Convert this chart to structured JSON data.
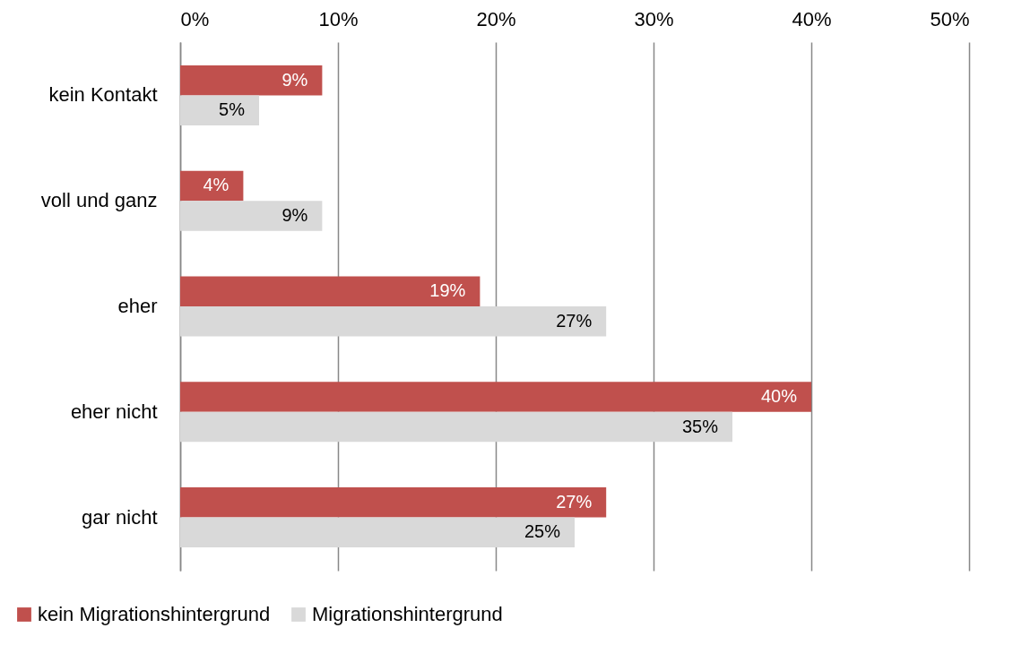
{
  "chart_data": {
    "type": "bar",
    "orientation": "horizontal",
    "categories": [
      "kein Kontakt",
      "voll und ganz",
      "eher",
      "eher nicht",
      "gar nicht"
    ],
    "series": [
      {
        "name": "kein Migrationshintergrund",
        "color": "#c0504d",
        "values": [
          9,
          4,
          19,
          40,
          27
        ],
        "value_labels": [
          "9%",
          "4%",
          "19%",
          "40%",
          "27%"
        ]
      },
      {
        "name": "Migrationshintergrund",
        "color": "#d9d9d9",
        "values": [
          5,
          9,
          27,
          35,
          25
        ],
        "value_labels": [
          "5%",
          "9%",
          "27%",
          "35%",
          "25%"
        ]
      }
    ],
    "xlim": [
      0,
      50
    ],
    "xticks": [
      {
        "value": 0,
        "label": "0%"
      },
      {
        "value": 10,
        "label": "10%"
      },
      {
        "value": 20,
        "label": "20%"
      },
      {
        "value": 30,
        "label": "30%"
      },
      {
        "value": 40,
        "label": "40%"
      },
      {
        "value": 50,
        "label": "50%"
      }
    ],
    "grid": "x",
    "legend": "bottom left"
  }
}
